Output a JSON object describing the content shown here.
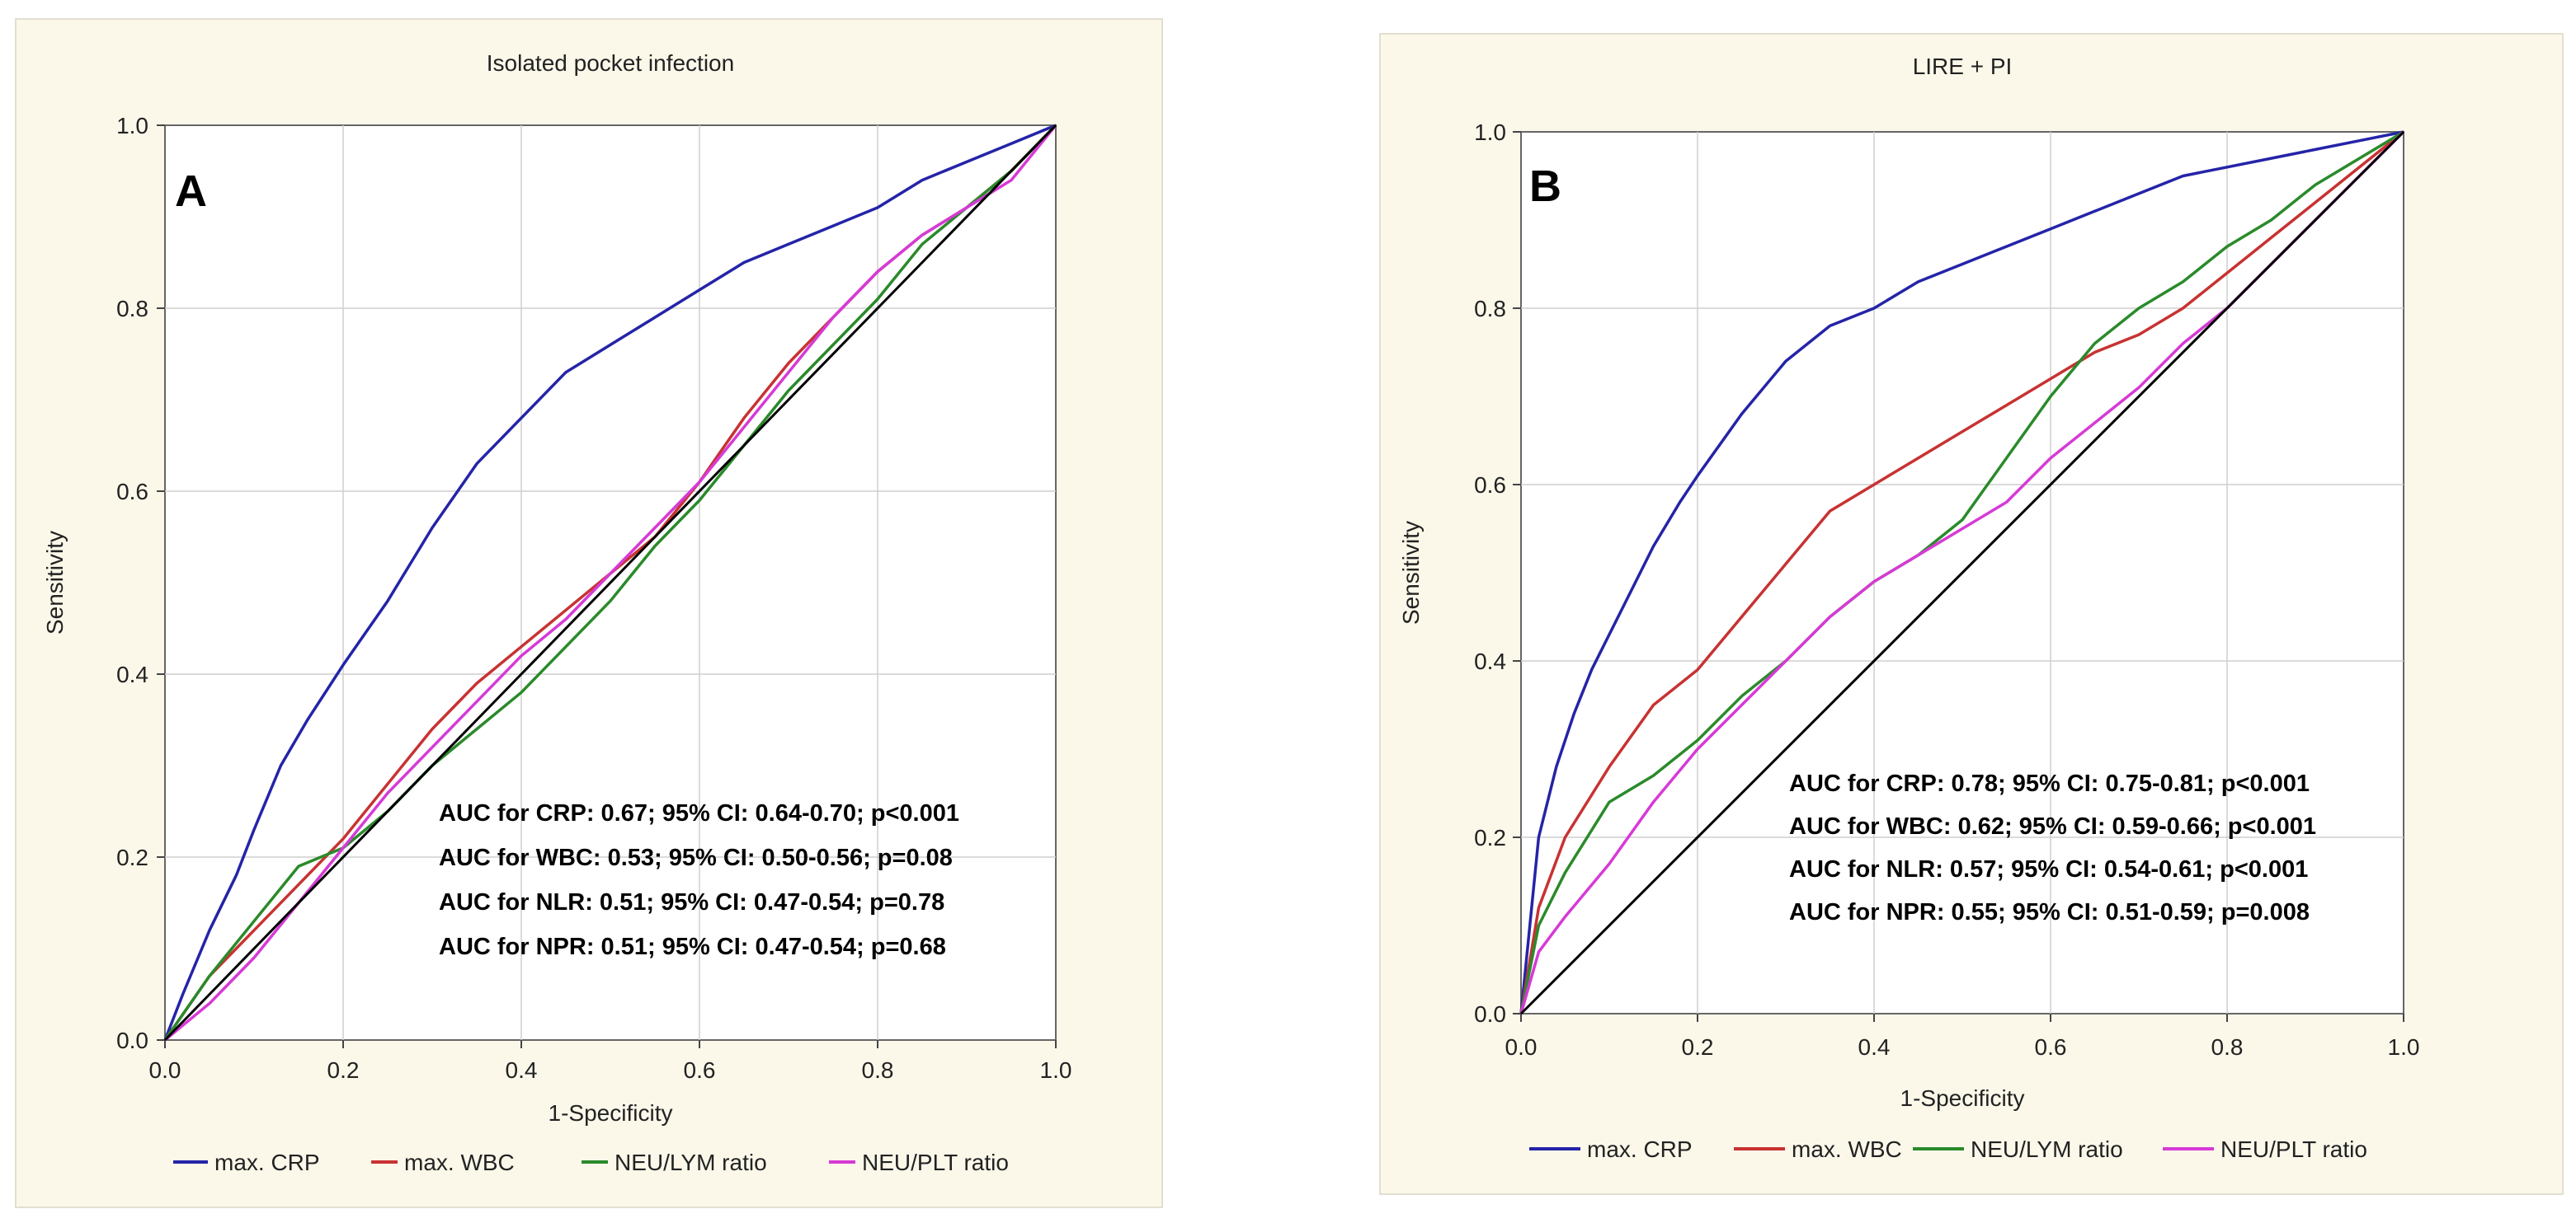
{
  "chart_data": [
    {
      "type": "line",
      "panel_letter": "A",
      "title": "Isolated pocket infection",
      "xlabel": "1-Specificity",
      "ylabel": "Sensitivity",
      "xlim": [
        0,
        1
      ],
      "ylim": [
        0,
        1
      ],
      "xticks": [
        "0.0",
        "0.2",
        "0.4",
        "0.6",
        "0.8",
        "1.0"
      ],
      "yticks": [
        "0.0",
        "0.2",
        "0.4",
        "0.6",
        "0.8",
        "1.0"
      ],
      "grid": true,
      "legend_position": "bottom",
      "annotations": [
        "AUC for CRP: 0.67; 95% CI: 0.64-0.70; p<0.001",
        "AUC for WBC: 0.53; 95% CI: 0.50-0.56; p=0.08",
        "AUC for NLR: 0.51; 95% CI: 0.47-0.54; p=0.78",
        "AUC for NPR: 0.51; 95% CI: 0.47-0.54; p=0.68"
      ],
      "series": [
        {
          "name": "max. CRP",
          "color": "#2424a8",
          "x": [
            0,
            0.02,
            0.05,
            0.08,
            0.1,
            0.13,
            0.16,
            0.2,
            0.25,
            0.3,
            0.35,
            0.4,
            0.45,
            0.5,
            0.55,
            0.6,
            0.65,
            0.7,
            0.75,
            0.8,
            0.85,
            0.9,
            0.95,
            1.0
          ],
          "y": [
            0,
            0.05,
            0.12,
            0.18,
            0.23,
            0.3,
            0.35,
            0.41,
            0.48,
            0.56,
            0.63,
            0.68,
            0.73,
            0.76,
            0.79,
            0.82,
            0.85,
            0.87,
            0.89,
            0.91,
            0.94,
            0.96,
            0.98,
            1.0
          ]
        },
        {
          "name": "max. WBC",
          "color": "#c83232",
          "x": [
            0,
            0.05,
            0.1,
            0.15,
            0.2,
            0.25,
            0.3,
            0.35,
            0.4,
            0.45,
            0.5,
            0.55,
            0.6,
            0.65,
            0.7,
            0.75,
            0.8,
            0.85,
            0.9,
            0.95,
            1.0
          ],
          "y": [
            0,
            0.07,
            0.12,
            0.17,
            0.22,
            0.28,
            0.34,
            0.39,
            0.43,
            0.47,
            0.51,
            0.55,
            0.61,
            0.68,
            0.74,
            0.79,
            0.84,
            0.88,
            0.91,
            0.95,
            1.0
          ]
        },
        {
          "name": "NEU/LYM ratio",
          "color": "#2a8a2a",
          "x": [
            0,
            0.05,
            0.1,
            0.15,
            0.2,
            0.25,
            0.3,
            0.35,
            0.4,
            0.45,
            0.5,
            0.55,
            0.6,
            0.65,
            0.7,
            0.75,
            0.8,
            0.85,
            0.9,
            0.95,
            1.0
          ],
          "y": [
            0,
            0.07,
            0.13,
            0.19,
            0.21,
            0.25,
            0.3,
            0.34,
            0.38,
            0.43,
            0.48,
            0.54,
            0.59,
            0.65,
            0.71,
            0.76,
            0.81,
            0.87,
            0.91,
            0.95,
            1.0
          ]
        },
        {
          "name": "NEU/PLT ratio",
          "color": "#d63ad6",
          "x": [
            0,
            0.05,
            0.1,
            0.15,
            0.2,
            0.25,
            0.3,
            0.35,
            0.4,
            0.45,
            0.5,
            0.55,
            0.6,
            0.65,
            0.7,
            0.75,
            0.8,
            0.85,
            0.9,
            0.95,
            1.0
          ],
          "y": [
            0,
            0.04,
            0.09,
            0.15,
            0.21,
            0.27,
            0.32,
            0.37,
            0.42,
            0.46,
            0.51,
            0.56,
            0.61,
            0.67,
            0.73,
            0.79,
            0.84,
            0.88,
            0.91,
            0.94,
            1.0
          ]
        },
        {
          "name": "reference",
          "color": "#000000",
          "legend": false,
          "x": [
            0,
            1
          ],
          "y": [
            0,
            1
          ]
        }
      ]
    },
    {
      "type": "line",
      "panel_letter": "B",
      "title": "LIRE + PI",
      "xlabel": "1-Specificity",
      "ylabel": "Sensitivity",
      "xlim": [
        0,
        1
      ],
      "ylim": [
        0,
        1
      ],
      "xticks": [
        "0.0",
        "0.2",
        "0.4",
        "0.6",
        "0.8",
        "1.0"
      ],
      "yticks": [
        "0.0",
        "0.2",
        "0.4",
        "0.6",
        "0.8",
        "1.0"
      ],
      "grid": true,
      "legend_position": "bottom",
      "annotations": [
        "AUC for CRP: 0.78; 95% CI: 0.75-0.81; p<0.001",
        "AUC for WBC: 0.62; 95% CI: 0.59-0.66; p<0.001",
        "AUC for NLR: 0.57; 95% CI: 0.54-0.61; p<0.001",
        "AUC for NPR: 0.55; 95% CI: 0.51-0.59; p=0.008"
      ],
      "series": [
        {
          "name": "max. CRP",
          "color": "#2424a8",
          "x": [
            0,
            0.01,
            0.02,
            0.04,
            0.06,
            0.08,
            0.1,
            0.12,
            0.15,
            0.18,
            0.2,
            0.25,
            0.3,
            0.35,
            0.4,
            0.45,
            0.5,
            0.55,
            0.6,
            0.65,
            0.7,
            0.75,
            0.8,
            0.85,
            0.9,
            0.95,
            1.0
          ],
          "y": [
            0,
            0.1,
            0.2,
            0.28,
            0.34,
            0.39,
            0.43,
            0.47,
            0.53,
            0.58,
            0.61,
            0.68,
            0.74,
            0.78,
            0.8,
            0.83,
            0.85,
            0.87,
            0.89,
            0.91,
            0.93,
            0.95,
            0.96,
            0.97,
            0.98,
            0.99,
            1.0
          ]
        },
        {
          "name": "max. WBC",
          "color": "#c83232",
          "x": [
            0,
            0.02,
            0.05,
            0.1,
            0.15,
            0.2,
            0.25,
            0.3,
            0.35,
            0.4,
            0.45,
            0.5,
            0.55,
            0.6,
            0.65,
            0.7,
            0.75,
            0.8,
            0.85,
            0.9,
            0.95,
            1.0
          ],
          "y": [
            0,
            0.12,
            0.2,
            0.28,
            0.35,
            0.39,
            0.45,
            0.51,
            0.57,
            0.6,
            0.63,
            0.66,
            0.69,
            0.72,
            0.75,
            0.77,
            0.8,
            0.84,
            0.88,
            0.92,
            0.96,
            1.0
          ]
        },
        {
          "name": "NEU/LYM ratio",
          "color": "#2a8a2a",
          "x": [
            0,
            0.02,
            0.05,
            0.1,
            0.15,
            0.2,
            0.25,
            0.3,
            0.35,
            0.4,
            0.45,
            0.5,
            0.55,
            0.6,
            0.65,
            0.7,
            0.75,
            0.8,
            0.85,
            0.9,
            0.95,
            1.0
          ],
          "y": [
            0,
            0.1,
            0.16,
            0.24,
            0.27,
            0.31,
            0.36,
            0.4,
            0.45,
            0.49,
            0.52,
            0.56,
            0.63,
            0.7,
            0.76,
            0.8,
            0.83,
            0.87,
            0.9,
            0.94,
            0.97,
            1.0
          ]
        },
        {
          "name": "NEU/PLT ratio",
          "color": "#d63ad6",
          "x": [
            0,
            0.02,
            0.05,
            0.1,
            0.15,
            0.2,
            0.25,
            0.3,
            0.35,
            0.4,
            0.45,
            0.5,
            0.55,
            0.6,
            0.65,
            0.7,
            0.75,
            0.8,
            0.85,
            0.9,
            0.95,
            1.0
          ],
          "y": [
            0,
            0.07,
            0.11,
            0.17,
            0.24,
            0.3,
            0.35,
            0.4,
            0.45,
            0.49,
            0.52,
            0.55,
            0.58,
            0.63,
            0.67,
            0.71,
            0.76,
            0.8,
            0.85,
            0.9,
            0.95,
            1.0
          ]
        },
        {
          "name": "reference",
          "color": "#000000",
          "legend": false,
          "x": [
            0,
            1
          ],
          "y": [
            0,
            1
          ]
        }
      ]
    }
  ]
}
